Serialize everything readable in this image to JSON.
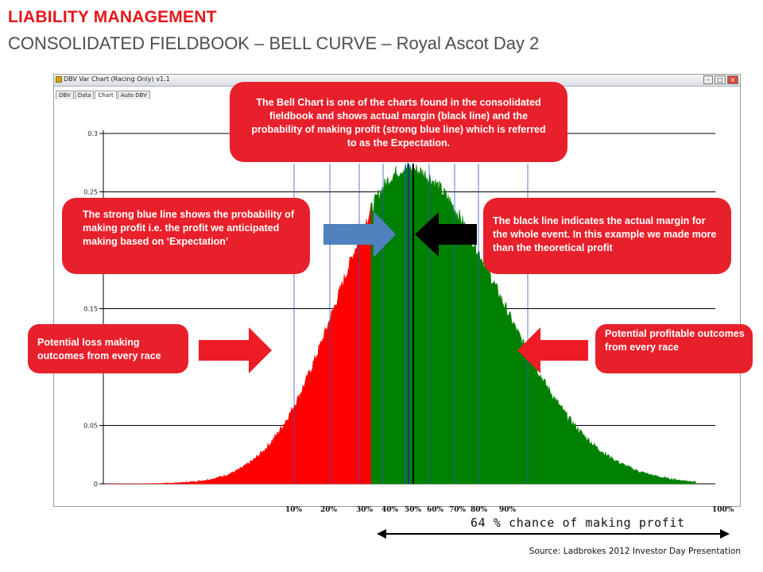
{
  "slide": {
    "title": "LIABILITY MANAGEMENT",
    "subtitle": "CONSOLIDATED FIELDBOOK – BELL CURVE – Royal Ascot Day 2",
    "source": "Source:  Ladbrokes 2012 Investor Day Presentation"
  },
  "window": {
    "title": "DBV Var Chart (Racing Only) v1.1",
    "tabs": [
      {
        "label": "DBV",
        "active": false
      },
      {
        "label": "Data",
        "active": false
      },
      {
        "label": "Chart",
        "active": true
      },
      {
        "label": "Auto DBV",
        "active": false
      }
    ],
    "controls": [
      "–",
      "□",
      "×"
    ]
  },
  "callouts": {
    "bell_chart": "The Bell Chart is one of the charts found in the consolidated fieldbook and shows actual margin (black line) and the probability of making profit (strong blue line) which is referred to as the Expectation.",
    "blue_line": "The strong blue line shows the probability of making profit i.e. the profit we anticipated making based on ‘Expectation’",
    "black_line": "The black line indicates the actual margin for the whole event. In this example we made more than the theoretical profit",
    "loss": "Potential loss making outcomes from every race",
    "profit": "Potential profitable outcomes from every race"
  },
  "percentile_labels": [
    "10%",
    "20%",
    "30%",
    "40%",
    "50%",
    "60%",
    "70%",
    "80%",
    "90%",
    "100%"
  ],
  "chance_label": "64 % chance of making profit",
  "colors": {
    "loss": "#ff0000",
    "profit": "#008000",
    "callout": "#e8202b",
    "title": "#e3171b",
    "blue_arrow": "#4f81bd",
    "black_arrow": "#000000",
    "red_arrow": "#ee1c25"
  },
  "chart_data": {
    "type": "area",
    "title": "",
    "xlabel": "",
    "ylabel": "",
    "yticks": [
      "0",
      "0.05",
      "0.15",
      "0.25",
      "0.3"
    ],
    "ylim": [
      0,
      0.3
    ],
    "x_percentiles": [
      10,
      20,
      30,
      40,
      50,
      60,
      70,
      80,
      90,
      100
    ],
    "expectation_percentile": 36,
    "actual_margin_percentile": 50,
    "peak_density": 0.27,
    "prob_profit_pct": 64,
    "series": [
      {
        "name": "Potential loss making outcomes",
        "color": "#ff0000"
      },
      {
        "name": "Potential profitable outcomes",
        "color": "#008000"
      }
    ]
  }
}
